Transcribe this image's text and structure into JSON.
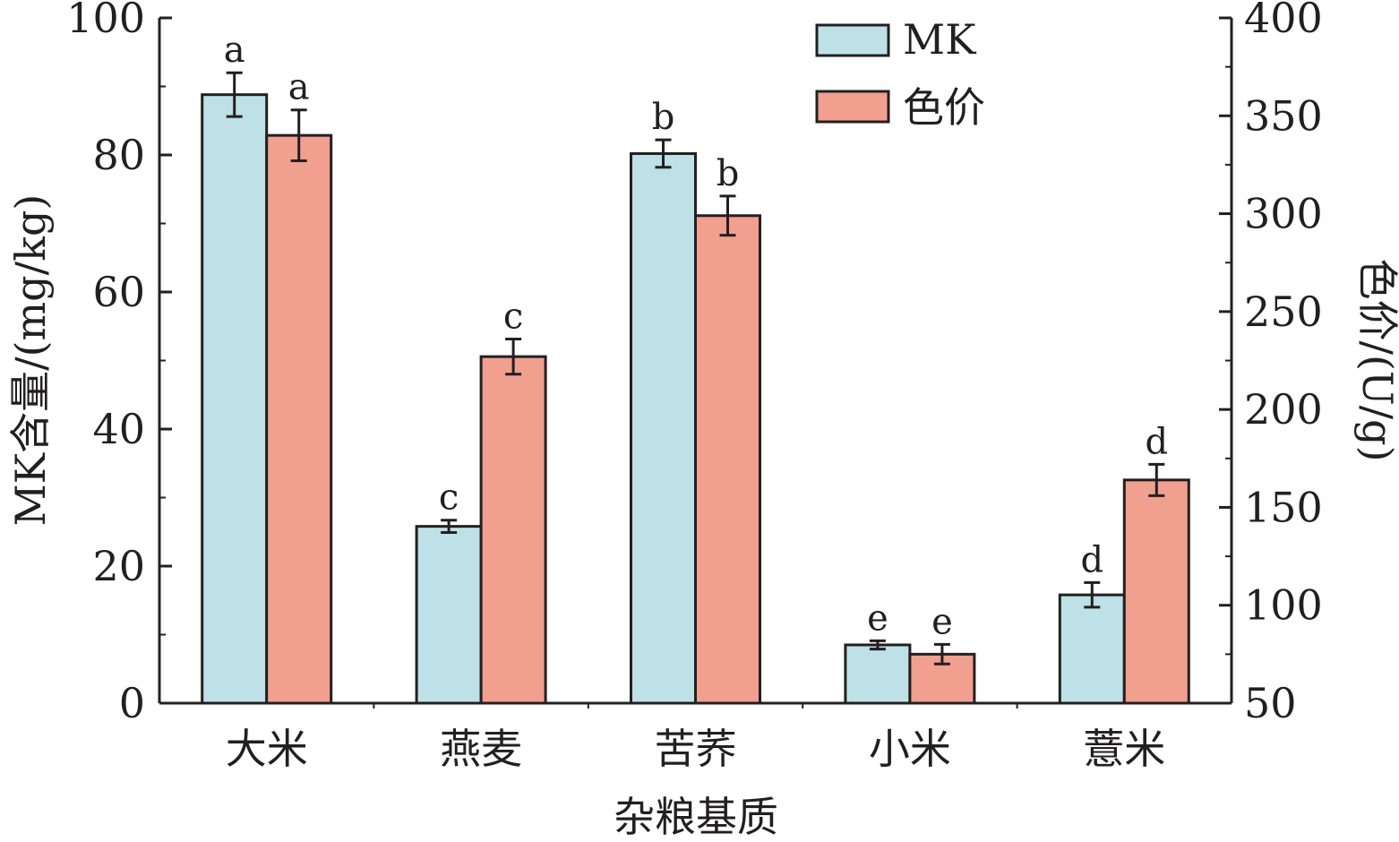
{
  "chart_data": {
    "type": "bar",
    "xlabel": "杂粮基质",
    "categories": [
      "大米",
      "燕麦",
      "苦荞",
      "小米",
      "薏米"
    ],
    "left_axis": {
      "label": "MK含量/(mg/kg)",
      "ylim": [
        0,
        100
      ],
      "ticks": [
        0,
        20,
        40,
        60,
        80,
        100
      ]
    },
    "right_axis": {
      "label": "色价/(U/g)",
      "ylim": [
        50,
        400
      ],
      "ticks": [
        50,
        100,
        150,
        200,
        250,
        300,
        350,
        400
      ]
    },
    "legend_position": "top-right",
    "grid": false,
    "series": [
      {
        "name": "MK",
        "axis": "left",
        "color": "#bde1e6",
        "values": [
          88.8,
          25.8,
          80.2,
          8.5,
          15.8
        ],
        "errors": [
          3.2,
          0.9,
          2.0,
          0.6,
          1.8
        ],
        "labels": [
          "a",
          "c",
          "b",
          "e",
          "d"
        ]
      },
      {
        "name": "色价",
        "axis": "right",
        "color": "#f19f8f",
        "values": [
          340,
          227,
          299,
          75,
          164
        ],
        "errors": [
          13,
          9,
          10,
          5,
          8
        ],
        "labels": [
          "a",
          "c",
          "b",
          "e",
          "d"
        ]
      }
    ]
  }
}
